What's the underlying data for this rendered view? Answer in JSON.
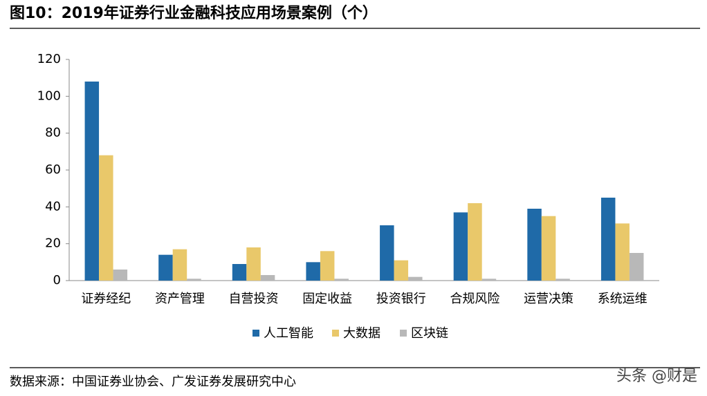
{
  "header": {
    "title": "图10：2019年证券行业金融科技应用场景案例（个）"
  },
  "chart_data": {
    "type": "bar",
    "categories": [
      "证券经纪",
      "资产管理",
      "自营投资",
      "固定收益",
      "投资银行",
      "合规风险",
      "运营决策",
      "系统运维"
    ],
    "series": [
      {
        "name": "人工智能",
        "color": "#1f6aa8",
        "values": [
          108,
          14,
          9,
          10,
          30,
          37,
          39,
          45
        ]
      },
      {
        "name": "大数据",
        "color": "#e9c86a",
        "values": [
          68,
          17,
          18,
          16,
          11,
          42,
          35,
          31
        ]
      },
      {
        "name": "区块链",
        "color": "#b8b8b8",
        "values": [
          6,
          1,
          3,
          1,
          2,
          1,
          1,
          15
        ]
      }
    ],
    "ylim": [
      0,
      120
    ],
    "yticks": [
      0,
      20,
      40,
      60,
      80,
      100,
      120
    ],
    "grid": false,
    "legend": "bottom"
  },
  "footer": {
    "source": "数据来源：中国证券业协会、广发证券发展研究中心",
    "watermark": "头条 @财是"
  }
}
